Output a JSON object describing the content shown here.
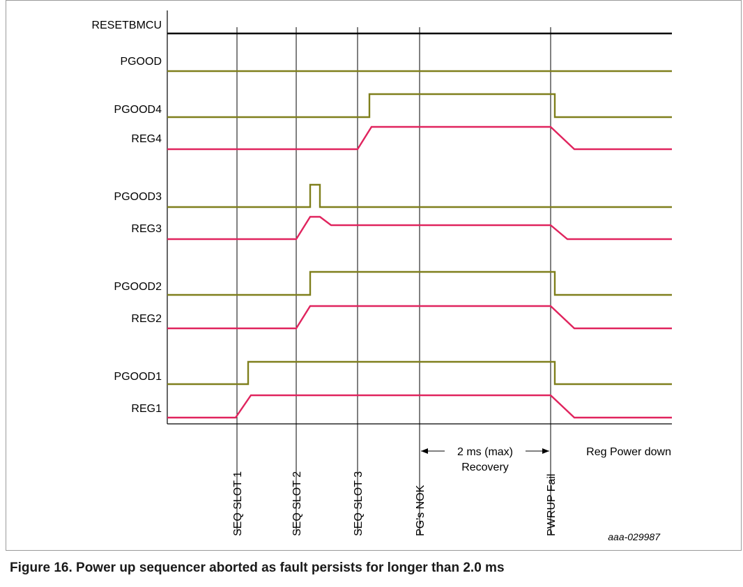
{
  "signals": [
    {
      "name": "RESETBMCU",
      "label": "RESETBMCU",
      "color": "#000000",
      "level": 0
    },
    {
      "name": "PGOOD",
      "label": "PGOOD",
      "color": "#7f7f1c",
      "level": 0
    },
    {
      "name": "PGOOD4",
      "label": "PGOOD4",
      "color": "#7f7f1c"
    },
    {
      "name": "REG4",
      "label": "REG4",
      "color": "#e0245e"
    },
    {
      "name": "PGOOD3",
      "label": "PGOOD3",
      "color": "#7f7f1c"
    },
    {
      "name": "REG3",
      "label": "REG3",
      "color": "#e0245e"
    },
    {
      "name": "PGOOD2",
      "label": "PGOOD2",
      "color": "#7f7f1c"
    },
    {
      "name": "REG2",
      "label": "REG2",
      "color": "#e0245e"
    },
    {
      "name": "PGOOD1",
      "label": "PGOOD1",
      "color": "#7f7f1c"
    },
    {
      "name": "REG1",
      "label": "REG1",
      "color": "#e0245e"
    }
  ],
  "markers": [
    {
      "name": "seq-slot-1",
      "label": "SEQ SLOT 1"
    },
    {
      "name": "seq-slot-2",
      "label": "SEQ SLOT 2"
    },
    {
      "name": "seq-slot-3",
      "label": "SEQ SLOT 3"
    },
    {
      "name": "pgs-nok",
      "label": "PG's NOK"
    },
    {
      "name": "pwrup-fail",
      "label": "PWRUP Fail"
    }
  ],
  "annotations": {
    "recovery_top": "2 ms (max)",
    "recovery_bottom": "Recovery",
    "reg_power_down": "Reg Power down"
  },
  "figure_id": "aaa-029987",
  "caption": "Figure 16. Power up sequencer aborted as fault persists for longer than 2.0 ms"
}
